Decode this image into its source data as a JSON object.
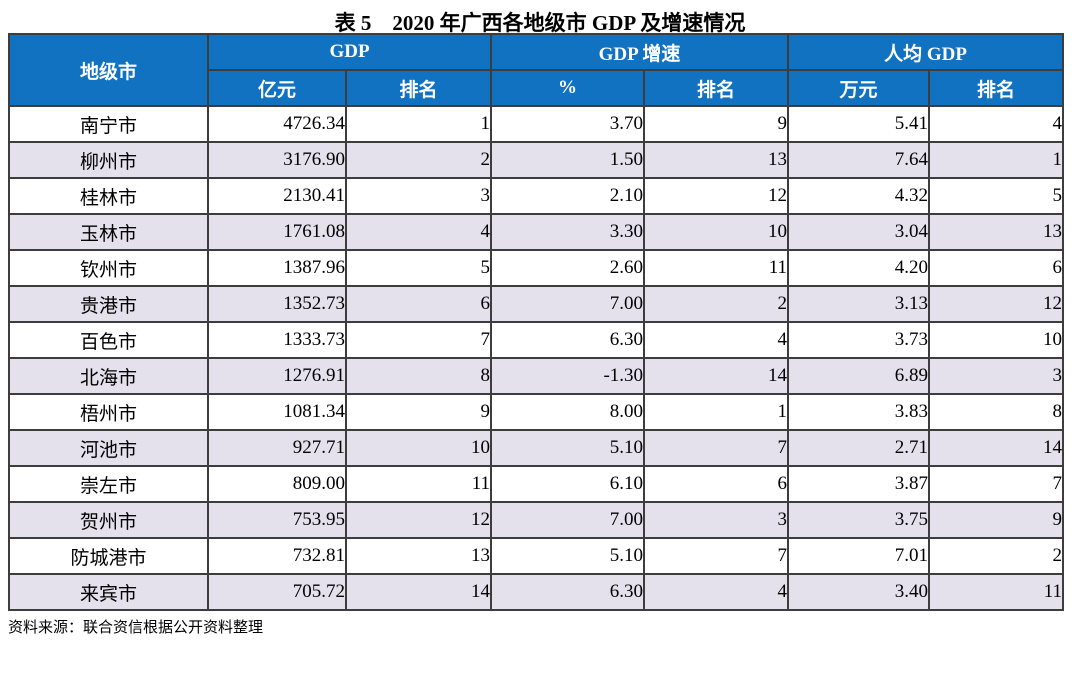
{
  "title": "表 5　2020 年广西各地级市 GDP 及增速情况",
  "colors": {
    "header_bg": "#1272C2",
    "header_text": "#FFFFFF",
    "row_alt_bg": "#E4E0EC",
    "row_bg": "#FFFFFF",
    "border": "#3D3D3D"
  },
  "table": {
    "header": {
      "city": "地级市",
      "gdp": "GDP",
      "gdp_growth": "GDP 增速",
      "per_capita_gdp": "人均 GDP"
    },
    "subheader": [
      "亿元",
      "排名",
      "%",
      "排名",
      "万元",
      "排名"
    ],
    "rows": [
      [
        "南宁市",
        "4726.34",
        "1",
        "3.70",
        "9",
        "5.41",
        "4"
      ],
      [
        "柳州市",
        "3176.90",
        "2",
        "1.50",
        "13",
        "7.64",
        "1"
      ],
      [
        "桂林市",
        "2130.41",
        "3",
        "2.10",
        "12",
        "4.32",
        "5"
      ],
      [
        "玉林市",
        "1761.08",
        "4",
        "3.30",
        "10",
        "3.04",
        "13"
      ],
      [
        "钦州市",
        "1387.96",
        "5",
        "2.60",
        "11",
        "4.20",
        "6"
      ],
      [
        "贵港市",
        "1352.73",
        "6",
        "7.00",
        "2",
        "3.13",
        "12"
      ],
      [
        "百色市",
        "1333.73",
        "7",
        "6.30",
        "4",
        "3.73",
        "10"
      ],
      [
        "北海市",
        "1276.91",
        "8",
        "-1.30",
        "14",
        "6.89",
        "3"
      ],
      [
        "梧州市",
        "1081.34",
        "9",
        "8.00",
        "1",
        "3.83",
        "8"
      ],
      [
        "河池市",
        "927.71",
        "10",
        "5.10",
        "7",
        "2.71",
        "14"
      ],
      [
        "崇左市",
        "809.00",
        "11",
        "6.10",
        "6",
        "3.87",
        "7"
      ],
      [
        "贺州市",
        "753.95",
        "12",
        "7.00",
        "3",
        "3.75",
        "9"
      ],
      [
        "防城港市",
        "732.81",
        "13",
        "5.10",
        "7",
        "7.01",
        "2"
      ],
      [
        "来宾市",
        "705.72",
        "14",
        "6.30",
        "4",
        "3.40",
        "11"
      ]
    ]
  },
  "footer": {
    "source_note": "资料来源：联合资信根据公开资料整理"
  }
}
